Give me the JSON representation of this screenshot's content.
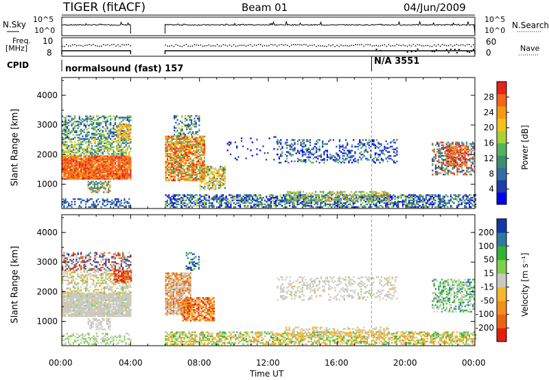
{
  "header": {
    "station": "TIGER (fitACF)",
    "beam": "Beam 01",
    "date": "04/Jun/2009"
  },
  "left_labels": {
    "nsky": "N.Sky",
    "nsky_ticks": [
      "10^5",
      "10^0"
    ],
    "freq": "Freq.",
    "freq_unit": "[MHz]",
    "freq_ticks": [
      "10",
      "8"
    ],
    "cpid": "CPID"
  },
  "right_labels": {
    "nsearch": "N.Search",
    "nsearch_ticks": [
      "10^5",
      "10^0"
    ],
    "nave": "Nave",
    "nave_ticks": [
      "60",
      "0"
    ]
  },
  "cpid_labels": [
    "normalsound (fast) 157",
    "N/A 3551"
  ],
  "colors": {
    "dark_blue": "#1f32c8",
    "power_scale": [
      "#0000ff",
      "#1e3ea8",
      "#2e6fa6",
      "#3b8f70",
      "#56b25b",
      "#a6d13a",
      "#f2c21b",
      "#f59a0f",
      "#f2661a",
      "#e6231b"
    ],
    "velocity_scale": [
      "#1538a8",
      "#2c7aa0",
      "#31b334",
      "#7bd24a",
      "#c8c8c0",
      "#f4b82a",
      "#f2901c",
      "#ec6314",
      "#e11f0e"
    ]
  },
  "chart_data": [
    {
      "type": "heatmap",
      "title": "",
      "xlabel": "",
      "ylabel": "Slant Range [km]",
      "x_ticks": [
        "00:00",
        "04:00",
        "08:00",
        "12:00",
        "16:00",
        "20:00",
        "00:00"
      ],
      "y_ticks": [
        "1000",
        "2000",
        "3000",
        "4000"
      ],
      "xlim": [
        "00:00",
        "24:00"
      ],
      "ylim": [
        180,
        4600
      ],
      "colorbar": {
        "label": "Power [dB]",
        "ticks": [
          "4",
          "8",
          "12",
          "16",
          "20",
          "24",
          "28"
        ]
      },
      "no_data_interval": [
        "04:00",
        "06:00"
      ]
    },
    {
      "type": "heatmap",
      "title": "",
      "xlabel": "Time UT",
      "ylabel": "Slant Range [km]",
      "x_ticks": [
        "00:00",
        "04:00",
        "08:00",
        "12:00",
        "16:00",
        "20:00",
        "00:00"
      ],
      "y_ticks": [
        "1000",
        "2000",
        "3000",
        "4000"
      ],
      "xlim": [
        "00:00",
        "24:00"
      ],
      "ylim": [
        180,
        4600
      ],
      "colorbar": {
        "label": "Velocity [m s⁻¹]",
        "ticks": [
          "200",
          "100",
          "50",
          "15",
          "-15",
          "-50",
          "-100",
          "-200"
        ]
      },
      "no_data_interval": [
        "04:00",
        "06:00"
      ]
    }
  ]
}
